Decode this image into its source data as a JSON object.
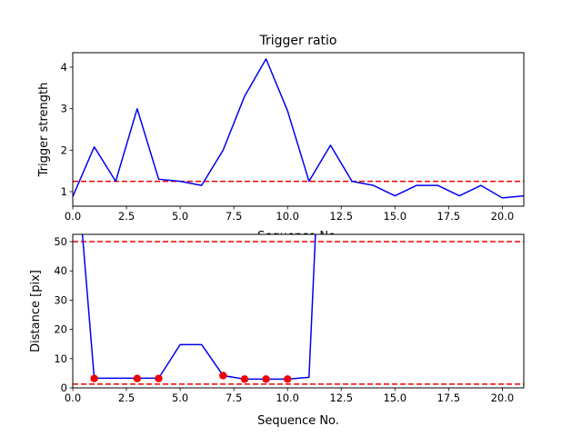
{
  "chart_data": [
    {
      "type": "line",
      "title": "Trigger ratio",
      "xlabel": "Sequence No.",
      "ylabel": "Trigger strength",
      "xlim": [
        0,
        21
      ],
      "ylim": [
        0.65,
        4.35
      ],
      "xticks": [
        0,
        2.5,
        5,
        7.5,
        10,
        12.5,
        15,
        17.5,
        20
      ],
      "xtick_labels": [
        "0.0",
        "2.5",
        "5.0",
        "7.5",
        "10.0",
        "12.5",
        "15.0",
        "17.5",
        "20.0"
      ],
      "yticks": [
        1,
        2,
        3,
        4
      ],
      "ytick_labels": [
        "1",
        "2",
        "3",
        "4"
      ],
      "grid": false,
      "series": [
        {
          "color": "#0000ee",
          "style": "solid",
          "x": [
            0,
            1,
            2,
            3,
            4,
            5,
            6,
            7,
            8,
            9,
            10,
            11,
            12,
            13,
            14,
            15,
            16,
            17,
            18,
            19,
            20,
            21
          ],
          "y": [
            0.88,
            2.08,
            1.25,
            3.0,
            1.3,
            1.25,
            1.15,
            2.0,
            3.3,
            4.2,
            2.95,
            1.25,
            2.12,
            1.25,
            1.15,
            0.9,
            1.15,
            1.15,
            0.9,
            1.15,
            0.85,
            0.9
          ]
        }
      ],
      "hlines": [
        {
          "y": 1.25,
          "color": "#ee0000",
          "style": "dashed"
        }
      ]
    },
    {
      "type": "line",
      "title": "",
      "xlabel": "Sequence No.",
      "ylabel": "Distance [pix]",
      "xlim": [
        0,
        21
      ],
      "ylim": [
        0,
        52.5
      ],
      "xticks": [
        0,
        2.5,
        5,
        7.5,
        10,
        12.5,
        15,
        17.5,
        20
      ],
      "xtick_labels": [
        "0.0",
        "2.5",
        "5.0",
        "7.5",
        "10.0",
        "12.5",
        "15.0",
        "17.5",
        "20.0"
      ],
      "yticks": [
        0,
        10,
        20,
        30,
        40,
        50
      ],
      "ytick_labels": [
        "0",
        "10",
        "20",
        "30",
        "40",
        "50"
      ],
      "grid": false,
      "series": [
        {
          "color": "#0000ee",
          "style": "solid",
          "x": [
            0.45,
            1,
            2,
            3,
            4,
            5,
            6,
            7,
            8,
            9,
            10,
            11,
            11.3
          ],
          "y": [
            52.5,
            3.3,
            3.3,
            3.3,
            3.3,
            14.8,
            14.8,
            4.2,
            3.0,
            3.0,
            3.0,
            3.6,
            52.5
          ]
        }
      ],
      "markers": [
        {
          "color": "#ee0000",
          "x": [
            1,
            3,
            4,
            7,
            8,
            9,
            10
          ],
          "y": [
            3.2,
            3.2,
            3.2,
            4.2,
            3.0,
            3.0,
            3.0
          ]
        }
      ],
      "hlines": [
        {
          "y": 50,
          "color": "#ee0000",
          "style": "dashed"
        },
        {
          "y": 1.3,
          "color": "#ee0000",
          "style": "dashed"
        }
      ]
    }
  ]
}
